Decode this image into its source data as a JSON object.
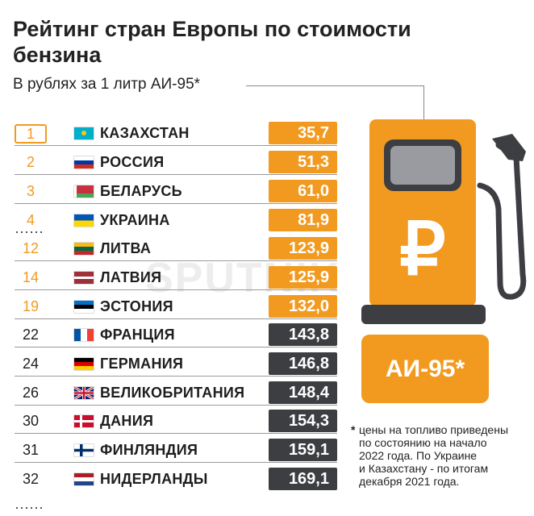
{
  "title": "Рейтинг стран Европы по стоимости бензина",
  "subtitle": "В рублях за 1 литр АИ-95*",
  "watermark": "SPUTNIK",
  "pump": {
    "currency_symbol": "₽",
    "fuel_label": "АИ-95*"
  },
  "note": {
    "marker": "*",
    "text": "цены на топливо приведены\nпо состоянию на начало\n2022 года. По Украине\nи Казахстану - по итогам\nдекабря 2021 года."
  },
  "colors": {
    "orange": "#f29a1f",
    "dark": "#3d3e42",
    "rank_orange": "#f29a1f"
  },
  "chart_data": {
    "type": "table",
    "title": "Рейтинг стран Европы по стоимости бензина",
    "subtitle": "В рублях за 1 литр АИ-95*",
    "rows": [
      {
        "rank": "1",
        "country": "КАЗАХСТАН",
        "value": "35,7",
        "flag": "kz",
        "highlight": true
      },
      {
        "rank": "2",
        "country": "РОССИЯ",
        "value": "51,3",
        "flag": "ru",
        "highlight": true
      },
      {
        "rank": "3",
        "country": "БЕЛАРУСЬ",
        "value": "61,0",
        "flag": "by",
        "highlight": true
      },
      {
        "rank": "4",
        "country": "УКРАИНА",
        "value": "81,9",
        "flag": "ua",
        "highlight": true
      },
      {
        "rank": "12",
        "country": "ЛИТВА",
        "value": "123,9",
        "flag": "lt",
        "highlight": true
      },
      {
        "rank": "14",
        "country": "ЛАТВИЯ",
        "value": "125,9",
        "flag": "lv",
        "highlight": true
      },
      {
        "rank": "19",
        "country": "ЭСТОНИЯ",
        "value": "132,0",
        "flag": "ee",
        "highlight": true
      },
      {
        "rank": "22",
        "country": "ФРАНЦИЯ",
        "value": "143,8",
        "flag": "fr",
        "highlight": false
      },
      {
        "rank": "24",
        "country": "ГЕРМАНИЯ",
        "value": "146,8",
        "flag": "de",
        "highlight": false
      },
      {
        "rank": "26",
        "country": "ВЕЛИКОБРИТАНИЯ",
        "value": "148,4",
        "flag": "gb",
        "highlight": false
      },
      {
        "rank": "30",
        "country": "ДАНИЯ",
        "value": "154,3",
        "flag": "dk",
        "highlight": false
      },
      {
        "rank": "31",
        "country": "ФИНЛЯНДИЯ",
        "value": "159,1",
        "flag": "fi",
        "highlight": false
      },
      {
        "rank": "32",
        "country": "НИДЕРЛАНДЫ",
        "value": "169,1",
        "flag": "nl",
        "highlight": false
      }
    ]
  }
}
